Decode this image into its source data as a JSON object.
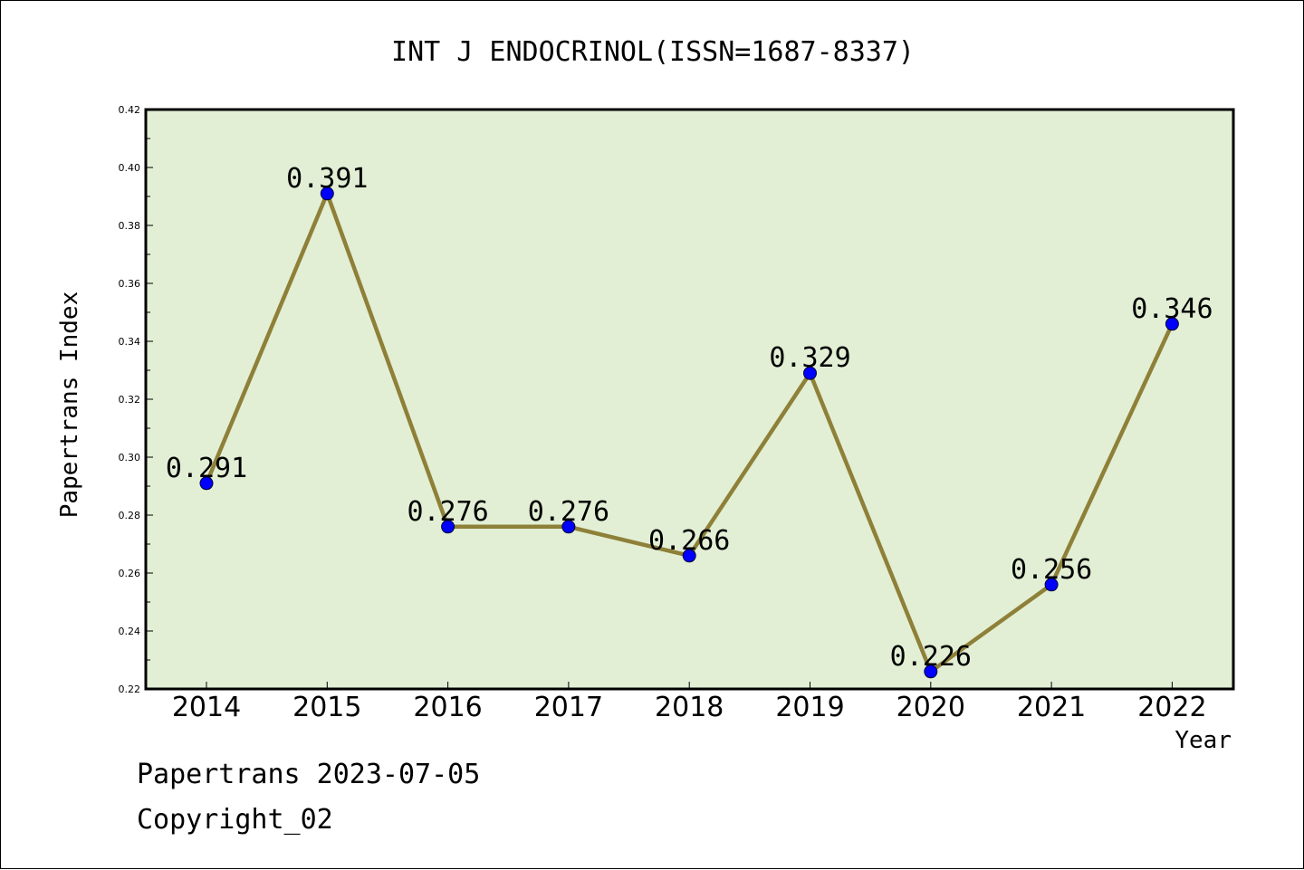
{
  "chart_data": {
    "type": "line",
    "title": "INT J ENDOCRINOL(ISSN=1687-8337)",
    "xlabel": "Year",
    "ylabel": "Papertrans Index",
    "x": [
      "2014",
      "2015",
      "2016",
      "2017",
      "2018",
      "2019",
      "2020",
      "2021",
      "2022"
    ],
    "values": [
      0.291,
      0.391,
      0.276,
      0.276,
      0.266,
      0.329,
      0.226,
      0.256,
      0.346
    ],
    "data_labels": [
      "0.291",
      "0.391",
      "0.276",
      "0.276",
      "0.266",
      "0.329",
      "0.226",
      "0.256",
      "0.346"
    ],
    "ylim": [
      0.22,
      0.42
    ],
    "yticks": [
      "0.22",
      "0.24",
      "0.26",
      "0.28",
      "0.30",
      "0.32",
      "0.34",
      "0.36",
      "0.38",
      "0.40",
      "0.42"
    ],
    "grid": false,
    "legend": "none",
    "colors": {
      "plot_background": "#e2efd5",
      "line": "#8e8038",
      "marker": "#0000ff"
    }
  },
  "footer": {
    "line1": "Papertrans 2023-07-05",
    "line2": "Copyright_02"
  }
}
